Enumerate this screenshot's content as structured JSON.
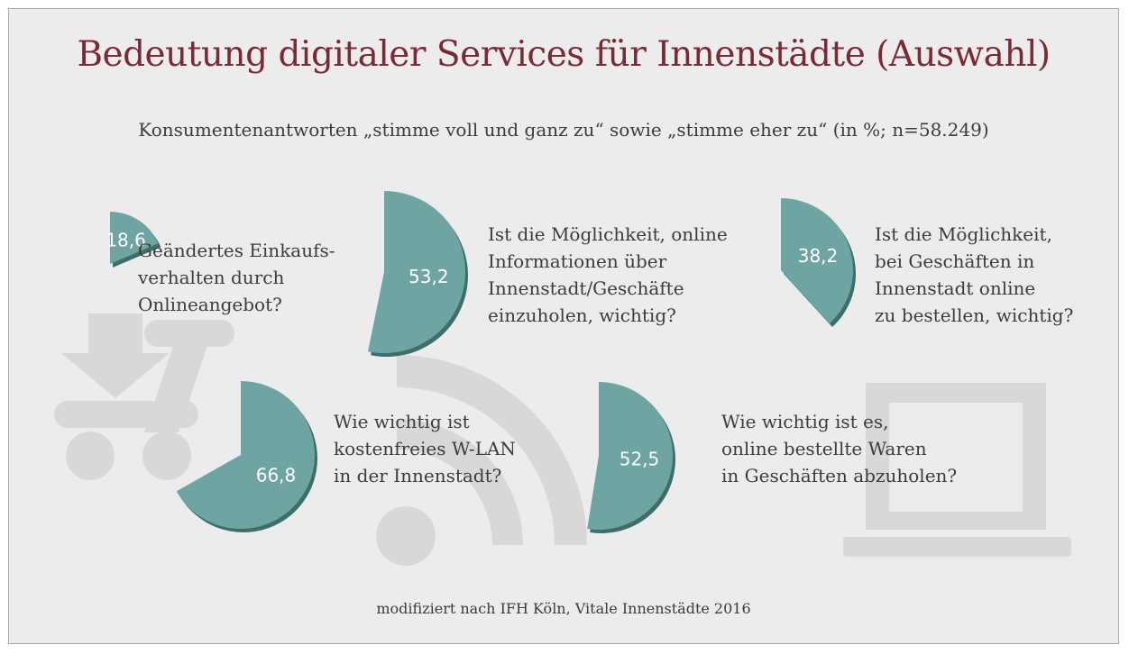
{
  "title": "Bedeutung digitaler Services für Innenstädte (Auswahl)",
  "subtitle": "Konsumentenantworten „stimme voll und ganz zu“ sowie „stimme eher zu“ (in %; n=58.249)",
  "source": "modifiziert nach IFH Köln, Vitale Innenstädte 2016",
  "colors": {
    "title": "#7b2a35",
    "pie": "#6ea5a3",
    "pie_shadow": "#3d6e6c",
    "background_icons": "#d8d8d8",
    "panel": "#ececec"
  },
  "background_icons": [
    "shopping-cart-icon",
    "download-arrow-icon",
    "wifi-icon",
    "laptop-icon"
  ],
  "chart_data": {
    "type": "pie",
    "unit": "%",
    "items": [
      {
        "value": 18.6,
        "label": "18,6",
        "question": [
          "Geändertes Einkaufs-",
          "verhalten durch",
          "Onlineangebot?"
        ]
      },
      {
        "value": 53.2,
        "label": "53,2",
        "question": [
          "Ist die Möglichkeit, online",
          "Informationen über",
          "Innenstadt/Geschäfte",
          "einzuholen, wichtig?"
        ]
      },
      {
        "value": 38.2,
        "label": "38,2",
        "question": [
          "Ist die Möglichkeit,",
          "bei Geschäften in",
          "Innenstadt online",
          "zu bestellen, wichtig?"
        ]
      },
      {
        "value": 66.8,
        "label": "66,8",
        "question": [
          "Wie wichtig ist",
          "kostenfreies W-LAN",
          "in der Innenstadt?"
        ]
      },
      {
        "value": 52.5,
        "label": "52,5",
        "question": [
          "Wie wichtig ist es,",
          "online bestellte Waren",
          "in Geschäften abzuholen?"
        ]
      }
    ]
  }
}
